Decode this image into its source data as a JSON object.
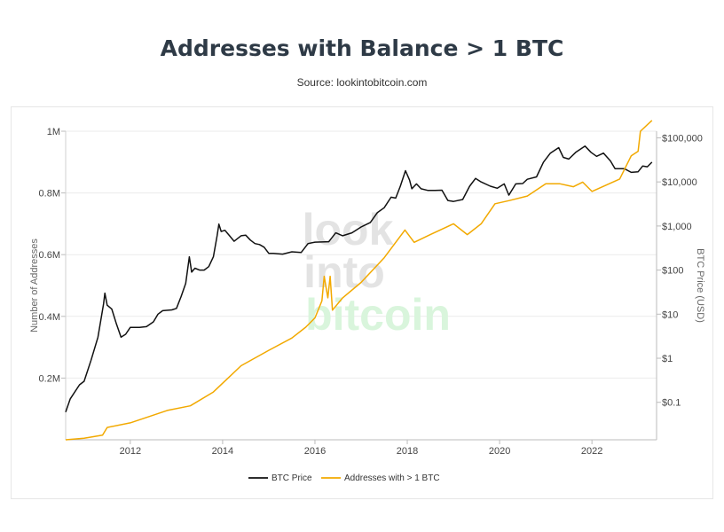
{
  "title": "Addresses with Balance > 1 BTC",
  "subtitle": "Source: lookintobitcoin.com",
  "watermark": {
    "line1": "look",
    "line2": "into",
    "line3": "bitcoin"
  },
  "colors": {
    "btc_price": "#111111",
    "addresses": "#f2a900",
    "grid": "#ebebeb",
    "watermark_gray": "#e3e3e3",
    "watermark_green": "#d9f5dc"
  },
  "chart_data": {
    "type": "line",
    "title": "Addresses with Balance > 1 BTC",
    "ylabel_left": "Number of Addresses",
    "ylabel_right": "BTC Price (USD)",
    "x_range": [
      2010.6,
      2023.4
    ],
    "y_left_range": [
      0,
      1000000
    ],
    "y_right_range_log10": [
      -1.85,
      5.15
    ],
    "x_ticks": [
      {
        "value": 2012,
        "label": "2012"
      },
      {
        "value": 2014,
        "label": "2014"
      },
      {
        "value": 2016,
        "label": "2016"
      },
      {
        "value": 2018,
        "label": "2018"
      },
      {
        "value": 2020,
        "label": "2020"
      },
      {
        "value": 2022,
        "label": "2022"
      }
    ],
    "y_left_ticks": [
      {
        "value": 200000,
        "label": "0.2M"
      },
      {
        "value": 400000,
        "label": "0.4M"
      },
      {
        "value": 600000,
        "label": "0.6M"
      },
      {
        "value": 800000,
        "label": "0.8M"
      },
      {
        "value": 1000000,
        "label": "1M"
      }
    ],
    "y_right_ticks": [
      {
        "value": 0.1,
        "label": "$0.1"
      },
      {
        "value": 1,
        "label": "$1"
      },
      {
        "value": 10,
        "label": "$10"
      },
      {
        "value": 100,
        "label": "$100"
      },
      {
        "value": 1000,
        "label": "$1,000"
      },
      {
        "value": 10000,
        "label": "$10,000"
      },
      {
        "value": 100000,
        "label": "$100,000"
      }
    ],
    "legend_position": "bottom-center",
    "series": [
      {
        "name": "BTC Price",
        "axis": "right-log",
        "color": "#111111",
        "points": [
          [
            2010.6,
            0.06
          ],
          [
            2010.7,
            0.12
          ],
          [
            2010.9,
            0.25
          ],
          [
            2011.0,
            0.3
          ],
          [
            2011.15,
            0.9
          ],
          [
            2011.3,
            3
          ],
          [
            2011.42,
            17
          ],
          [
            2011.45,
            30
          ],
          [
            2011.5,
            16
          ],
          [
            2011.6,
            13
          ],
          [
            2011.7,
            6
          ],
          [
            2011.8,
            3
          ],
          [
            2011.9,
            3.5
          ],
          [
            2012.0,
            5
          ],
          [
            2012.1,
            5
          ],
          [
            2012.2,
            5
          ],
          [
            2012.35,
            5.2
          ],
          [
            2012.5,
            6.7
          ],
          [
            2012.6,
            10
          ],
          [
            2012.7,
            12
          ],
          [
            2012.9,
            12.5
          ],
          [
            2013.0,
            13.5
          ],
          [
            2013.1,
            25
          ],
          [
            2013.2,
            50
          ],
          [
            2013.28,
            200
          ],
          [
            2013.33,
            90
          ],
          [
            2013.4,
            110
          ],
          [
            2013.5,
            100
          ],
          [
            2013.6,
            100
          ],
          [
            2013.7,
            120
          ],
          [
            2013.8,
            200
          ],
          [
            2013.88,
            600
          ],
          [
            2013.92,
            1100
          ],
          [
            2013.97,
            750
          ],
          [
            2014.05,
            800
          ],
          [
            2014.15,
            600
          ],
          [
            2014.25,
            450
          ],
          [
            2014.4,
            600
          ],
          [
            2014.5,
            620
          ],
          [
            2014.6,
            480
          ],
          [
            2014.7,
            400
          ],
          [
            2014.8,
            380
          ],
          [
            2014.9,
            330
          ],
          [
            2015.0,
            240
          ],
          [
            2015.1,
            240
          ],
          [
            2015.3,
            230
          ],
          [
            2015.5,
            260
          ],
          [
            2015.7,
            250
          ],
          [
            2015.85,
            400
          ],
          [
            2016.0,
            430
          ],
          [
            2016.3,
            440
          ],
          [
            2016.45,
            700
          ],
          [
            2016.6,
            600
          ],
          [
            2016.8,
            700
          ],
          [
            2017.0,
            950
          ],
          [
            2017.2,
            1200
          ],
          [
            2017.35,
            2000
          ],
          [
            2017.5,
            2600
          ],
          [
            2017.65,
            4500
          ],
          [
            2017.75,
            4300
          ],
          [
            2017.85,
            8000
          ],
          [
            2017.96,
            18000
          ],
          [
            2018.05,
            11000
          ],
          [
            2018.1,
            7000
          ],
          [
            2018.2,
            9000
          ],
          [
            2018.3,
            7000
          ],
          [
            2018.45,
            6400
          ],
          [
            2018.6,
            6400
          ],
          [
            2018.75,
            6500
          ],
          [
            2018.88,
            3800
          ],
          [
            2019.0,
            3600
          ],
          [
            2019.2,
            4000
          ],
          [
            2019.35,
            8000
          ],
          [
            2019.48,
            12000
          ],
          [
            2019.6,
            10000
          ],
          [
            2019.8,
            8000
          ],
          [
            2019.95,
            7200
          ],
          [
            2020.1,
            9000
          ],
          [
            2020.2,
            5000
          ],
          [
            2020.35,
            9000
          ],
          [
            2020.5,
            9200
          ],
          [
            2020.6,
            11500
          ],
          [
            2020.8,
            13000
          ],
          [
            2020.95,
            28000
          ],
          [
            2021.1,
            45000
          ],
          [
            2021.28,
            60000
          ],
          [
            2021.38,
            36000
          ],
          [
            2021.5,
            33000
          ],
          [
            2021.65,
            47000
          ],
          [
            2021.85,
            65000
          ],
          [
            2021.98,
            47000
          ],
          [
            2022.1,
            38000
          ],
          [
            2022.25,
            45000
          ],
          [
            2022.4,
            30000
          ],
          [
            2022.5,
            20000
          ],
          [
            2022.7,
            20000
          ],
          [
            2022.85,
            16500
          ],
          [
            2023.0,
            17000
          ],
          [
            2023.1,
            23000
          ],
          [
            2023.2,
            22000
          ],
          [
            2023.3,
            28000
          ]
        ]
      },
      {
        "name": "Addresses with > 1 BTC",
        "axis": "left",
        "color": "#f2a900",
        "points": [
          [
            2010.6,
            0
          ],
          [
            2011.0,
            5000
          ],
          [
            2011.4,
            15000
          ],
          [
            2011.5,
            40000
          ],
          [
            2012.0,
            55000
          ],
          [
            2012.5,
            80000
          ],
          [
            2012.8,
            95000
          ],
          [
            2013.3,
            110000
          ],
          [
            2013.8,
            155000
          ],
          [
            2014.4,
            240000
          ],
          [
            2015.0,
            290000
          ],
          [
            2015.5,
            330000
          ],
          [
            2015.8,
            365000
          ],
          [
            2016.0,
            395000
          ],
          [
            2016.15,
            450000
          ],
          [
            2016.2,
            530000
          ],
          [
            2016.28,
            460000
          ],
          [
            2016.33,
            530000
          ],
          [
            2016.38,
            420000
          ],
          [
            2016.6,
            460000
          ],
          [
            2017.0,
            510000
          ],
          [
            2017.5,
            590000
          ],
          [
            2017.95,
            680000
          ],
          [
            2018.15,
            640000
          ],
          [
            2018.5,
            665000
          ],
          [
            2019.0,
            700000
          ],
          [
            2019.3,
            665000
          ],
          [
            2019.6,
            700000
          ],
          [
            2019.9,
            765000
          ],
          [
            2020.2,
            775000
          ],
          [
            2020.6,
            790000
          ],
          [
            2021.0,
            830000
          ],
          [
            2021.3,
            830000
          ],
          [
            2021.6,
            820000
          ],
          [
            2021.8,
            835000
          ],
          [
            2022.0,
            805000
          ],
          [
            2022.3,
            825000
          ],
          [
            2022.6,
            845000
          ],
          [
            2022.85,
            920000
          ],
          [
            2023.0,
            935000
          ],
          [
            2023.05,
            1000000
          ],
          [
            2023.3,
            1035000
          ]
        ]
      }
    ]
  },
  "legend": [
    {
      "label": "BTC Price",
      "color": "#111111"
    },
    {
      "label": "Addresses with > 1 BTC",
      "color": "#f2a900"
    }
  ]
}
